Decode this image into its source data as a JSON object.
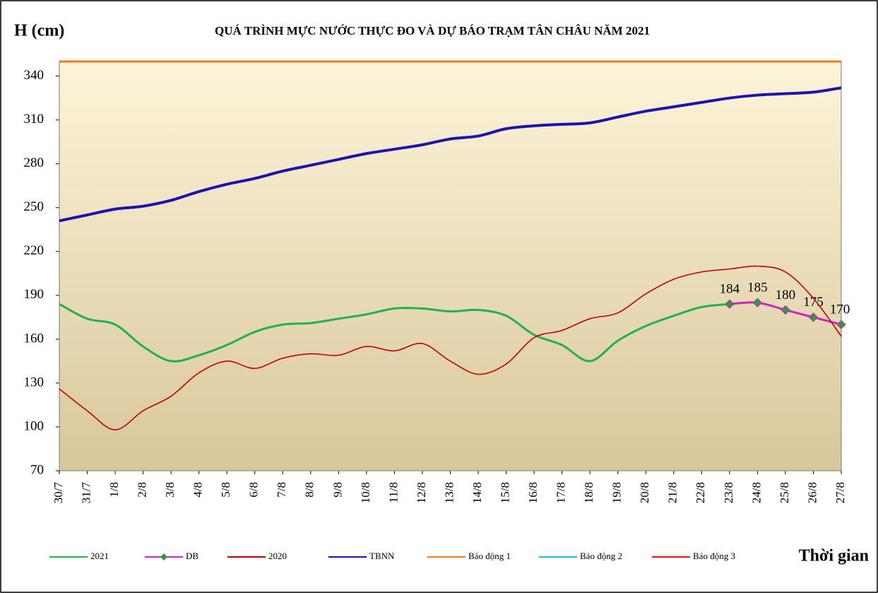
{
  "chart_data": {
    "type": "line",
    "title": "QUÁ TRÌNH MỰC NƯỚC THỰC ĐO VÀ DỰ BÁO TRẠM TÂN CHÂU NĂM 2021",
    "y_label": "H (cm)",
    "x_label": "Thời gian",
    "categories": [
      "30/7",
      "31/7",
      "1/8",
      "2/8",
      "3/8",
      "4/8",
      "5/8",
      "6/8",
      "7/8",
      "8/8",
      "9/8",
      "10/8",
      "11/8",
      "12/8",
      "13/8",
      "14/8",
      "15/8",
      "16/8",
      "17/8",
      "18/8",
      "19/8",
      "20/8",
      "21/8",
      "22/8",
      "23/8",
      "24/8",
      "25/8",
      "26/8",
      "27/8"
    ],
    "ylim": [
      70,
      350
    ],
    "yticks": [
      70,
      100,
      130,
      160,
      190,
      220,
      250,
      280,
      310,
      340
    ],
    "series": [
      {
        "name": "2021",
        "color": "#1fb34a",
        "values": [
          184,
          174,
          170,
          155,
          145,
          149,
          156,
          165,
          170,
          171,
          174,
          177,
          181,
          181,
          179,
          180,
          176,
          163,
          156,
          145,
          159,
          169,
          176,
          182,
          184,
          null,
          null,
          null,
          null
        ]
      },
      {
        "name": "DB",
        "color": "#cc22cc",
        "marker": "diamond",
        "marker_color": "#2e9a3a",
        "values": [
          null,
          null,
          null,
          null,
          null,
          null,
          null,
          null,
          null,
          null,
          null,
          null,
          null,
          null,
          null,
          null,
          null,
          null,
          null,
          null,
          null,
          null,
          null,
          null,
          184,
          185,
          180,
          175,
          170
        ]
      },
      {
        "name": "2020",
        "color": "#c00000",
        "values": [
          126,
          111,
          98,
          111,
          121,
          137,
          145,
          140,
          147,
          150,
          149,
          155,
          152,
          157,
          145,
          136,
          143,
          161,
          166,
          174,
          178,
          191,
          201,
          206,
          208,
          210,
          206,
          188,
          162
        ]
      },
      {
        "name": "TBNN",
        "color": "#1c14b0",
        "values": [
          241,
          245,
          249,
          251,
          255,
          261,
          266,
          270,
          275,
          279,
          283,
          287,
          290,
          293,
          297,
          299,
          304,
          306,
          307,
          308,
          312,
          316,
          319,
          322,
          325,
          327,
          328,
          329,
          332
        ]
      },
      {
        "name": "Báo động 1",
        "color": "#f07a1a",
        "values": [
          350,
          350,
          350,
          350,
          350,
          350,
          350,
          350,
          350,
          350,
          350,
          350,
          350,
          350,
          350,
          350,
          350,
          350,
          350,
          350,
          350,
          350,
          350,
          350,
          350,
          350,
          350,
          350,
          350
        ]
      },
      {
        "name": "Báo động 2",
        "color": "#22b4ea",
        "values": [
          null,
          null,
          null,
          null,
          null,
          null,
          null,
          null,
          null,
          null,
          null,
          null,
          null,
          null,
          null,
          null,
          null,
          null,
          null,
          null,
          null,
          null,
          null,
          null,
          null,
          null,
          null,
          null,
          null
        ]
      },
      {
        "name": "Báo động 3",
        "color": "#e01414",
        "values": [
          null,
          null,
          null,
          null,
          null,
          null,
          null,
          null,
          null,
          null,
          null,
          null,
          null,
          null,
          null,
          null,
          null,
          null,
          null,
          null,
          null,
          null,
          null,
          null,
          null,
          null,
          null,
          null,
          null
        ]
      }
    ]
  }
}
